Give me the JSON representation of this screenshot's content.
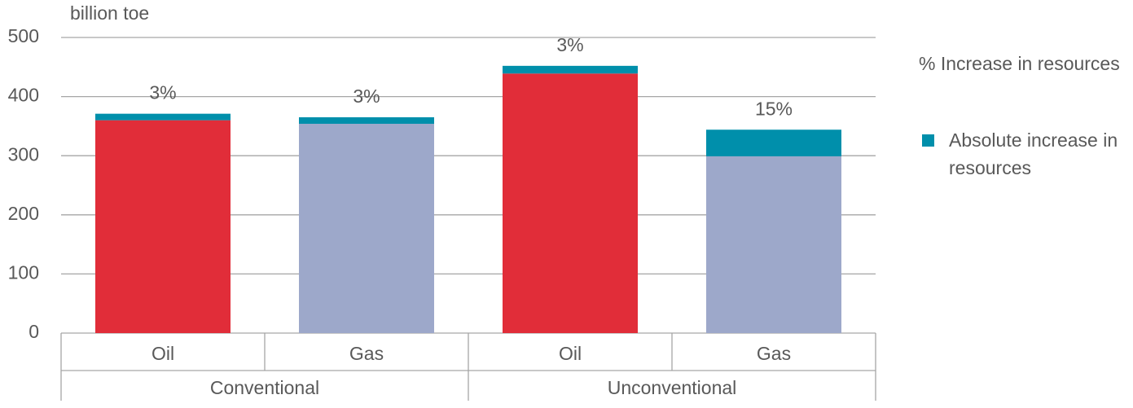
{
  "chart_data": {
    "type": "stacked_bar",
    "y_label": "billion toe",
    "categories": [
      "Oil",
      "Gas",
      "Oil",
      "Gas"
    ],
    "groups": [
      "Conventional",
      "Unconventional"
    ],
    "series": [
      {
        "colors": [
          "#e12d39",
          "#9da8ca",
          "#e12d39",
          "#9da8ca"
        ],
        "values": [
          360,
          354,
          439,
          299
        ]
      },
      {
        "name": "Absolute increase in resources",
        "color": "#008fab",
        "values": [
          11,
          11,
          13,
          45
        ]
      }
    ],
    "percent": {
      "name": "%  Increase in resources",
      "values": [
        3,
        3,
        3,
        15
      ],
      "value_labels": [
        "3%",
        "3%",
        "3%",
        "15%"
      ]
    },
    "ylim": [
      0,
      500
    ],
    "yticks": [
      0,
      100,
      200,
      300,
      400,
      500
    ],
    "grid": true
  }
}
